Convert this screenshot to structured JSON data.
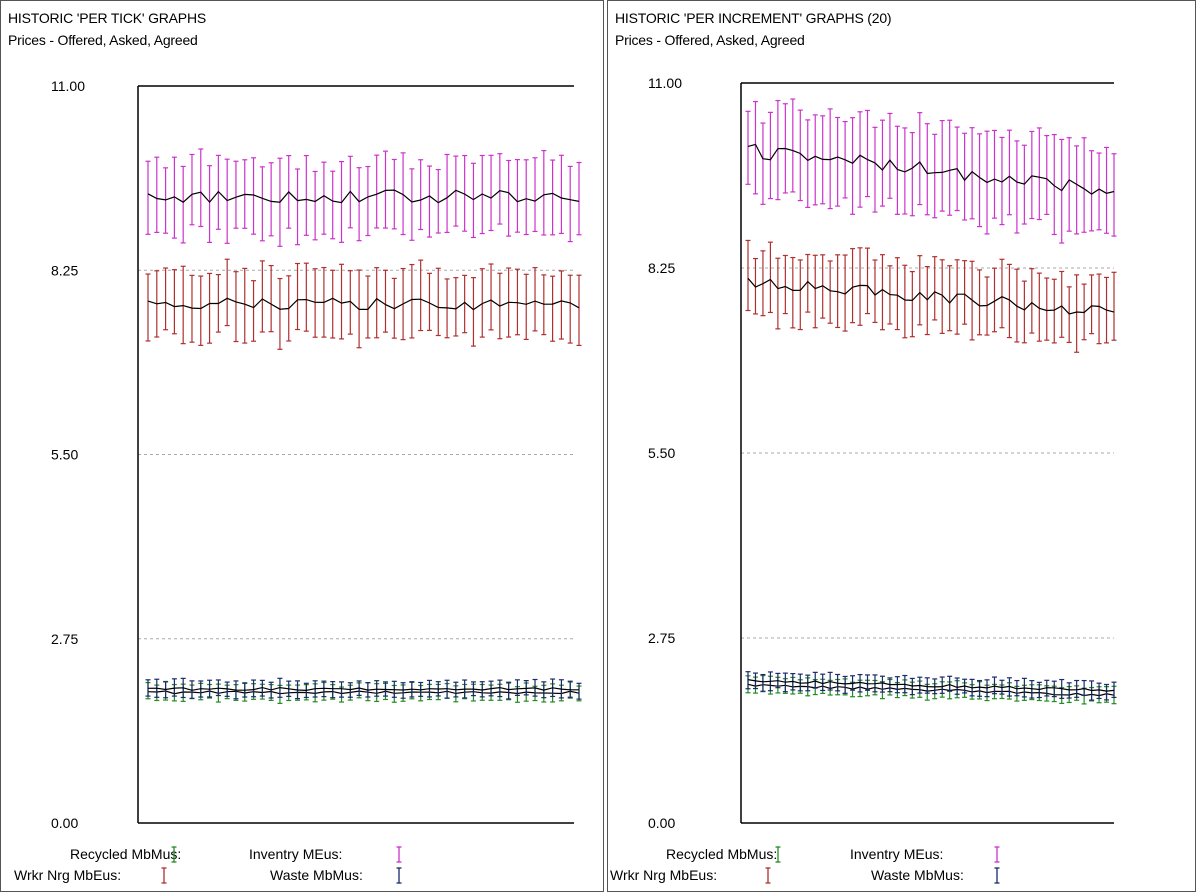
{
  "chart_data": [
    {
      "type": "line",
      "title": "HISTORIC 'PER TICK' GRAPHS",
      "subtitle": "Prices - Offered, Asked, Agreed",
      "ylim": [
        0,
        11
      ],
      "yticks": [
        "11.00",
        "8.25",
        "5.50",
        "2.75",
        "0.00"
      ],
      "grid": true,
      "points": 50,
      "legend": [
        "Recycled MbMus:",
        "Inventry MEus:",
        "Wrkr Nrg MbEus:",
        "Waste MbMus:"
      ],
      "series": [
        {
          "key": "inventry",
          "color": "#cc33cc",
          "center": 9.35,
          "spread": 0.55,
          "trend": 0.0
        },
        {
          "key": "wrkr",
          "color": "#b03030",
          "center": 7.75,
          "spread": 0.5,
          "trend": 0.0
        },
        {
          "key": "recycled",
          "color": "#228b22",
          "center": 1.95,
          "spread": 0.12,
          "trend": 0.0
        },
        {
          "key": "waste",
          "color": "#1a2a6c",
          "center": 2.0,
          "spread": 0.12,
          "trend": 0.0
        }
      ]
    },
    {
      "type": "line",
      "title": "HISTORIC 'PER INCREMENT' GRAPHS (20)",
      "subtitle": "Prices - Offered, Asked, Agreed",
      "ylim": [
        0,
        11
      ],
      "yticks": [
        "11.00",
        "8.25",
        "5.50",
        "2.75",
        "0.00"
      ],
      "grid": true,
      "points": 50,
      "legend": [
        "Recycled MbMus:",
        "Inventry MEus:",
        "Wrkr Nrg MbEus:",
        "Waste MbMus:"
      ],
      "series": [
        {
          "key": "inventry",
          "color": "#cc33cc",
          "center": 10.0,
          "spread": 0.65,
          "trend": -0.6
        },
        {
          "key": "wrkr",
          "color": "#b03030",
          "center": 8.05,
          "spread": 0.5,
          "trend": -0.45
        },
        {
          "key": "recycled",
          "color": "#228b22",
          "center": 2.05,
          "spread": 0.12,
          "trend": -0.15
        },
        {
          "key": "waste",
          "color": "#1a2a6c",
          "center": 2.12,
          "spread": 0.12,
          "trend": -0.15
        }
      ]
    }
  ]
}
